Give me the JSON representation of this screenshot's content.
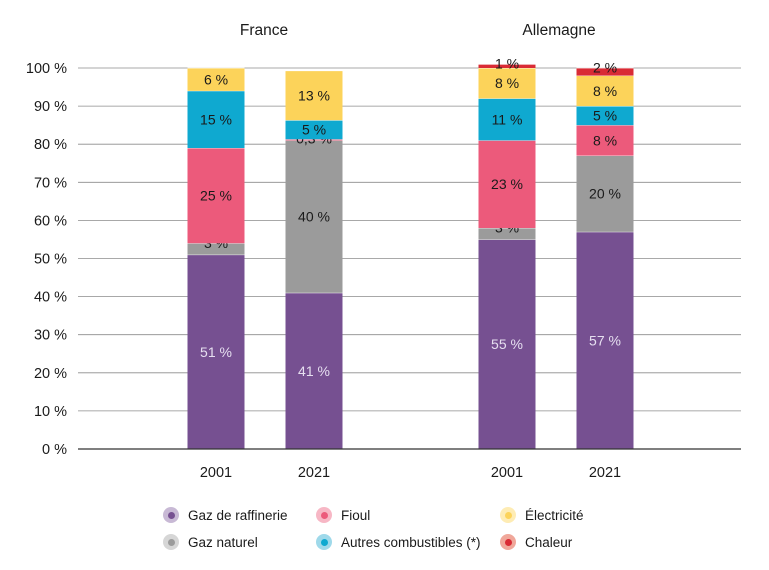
{
  "chart_data": {
    "type": "bar",
    "stacked": true,
    "groups": [
      {
        "title": "France",
        "bars": [
          {
            "category": "2001",
            "values": [
              51,
              3,
              25,
              15,
              6,
              0
            ],
            "labels": [
              "51 %",
              "3 %",
              "25 %",
              "15 %",
              "6 %",
              ""
            ]
          },
          {
            "category": "2021",
            "values": [
              41,
              40,
              0.3,
              5,
              13,
              0
            ],
            "labels": [
              "41 %",
              "40 %",
              "0,3 %",
              "5 %",
              "13 %",
              ""
            ]
          }
        ]
      },
      {
        "title": "Allemagne",
        "bars": [
          {
            "category": "2001",
            "values": [
              55,
              3,
              23,
              11,
              8,
              1
            ],
            "labels": [
              "55 %",
              "3 %",
              "23 %",
              "11 %",
              "8 %",
              "1 %"
            ]
          },
          {
            "category": "2021",
            "values": [
              57,
              20,
              8,
              5,
              8,
              2
            ],
            "labels": [
              "57 %",
              "20 %",
              "8 %",
              "5 %",
              "8 %",
              "2 %"
            ]
          }
        ]
      }
    ],
    "series": [
      {
        "name": "Gaz de raffinerie",
        "color": "#765091",
        "halo": "#c8b9d5",
        "label_color": "#e6dff0"
      },
      {
        "name": "Gaz naturel",
        "color": "#9b9b9b",
        "halo": "#d6d6d6",
        "label_color": "#1a1a1a"
      },
      {
        "name": "Fioul",
        "color": "#ec5a7b",
        "halo": "#f7b7c5",
        "label_color": "#1a1a1a"
      },
      {
        "name": "Autres combustibles (*)",
        "color": "#0fa9d0",
        "halo": "#9fd9ea",
        "label_color": "#1a1a1a"
      },
      {
        "name": "Électricité",
        "color": "#fcd35a",
        "halo": "#feecb4",
        "label_color": "#1a1a1a"
      },
      {
        "name": "Chaleur",
        "color": "#d92b35",
        "halo": "#f0a79a",
        "label_color": "#1a1a1a"
      }
    ],
    "yticks": [
      "0 %",
      "10 %",
      "20 %",
      "30 %",
      "40 %",
      "50 %",
      "60 %",
      "70 %",
      "80 %",
      "90 %",
      "100 %"
    ],
    "ylim": [
      0,
      100
    ],
    "grid": true,
    "legend_position": "bottom"
  }
}
